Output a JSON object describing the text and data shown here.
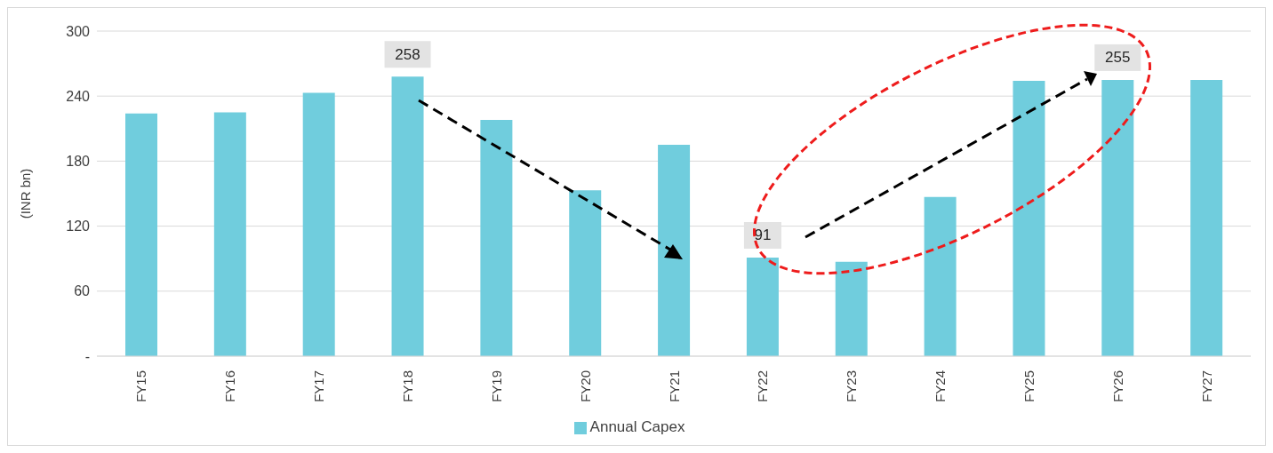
{
  "chart_data": {
    "type": "bar",
    "ylabel": "(INR bn)",
    "categories": [
      "FY15",
      "FY16",
      "FY17",
      "FY18",
      "FY19",
      "FY20",
      "FY21",
      "FY22",
      "FY23",
      "FY24",
      "FY25",
      "FY26",
      "FY27"
    ],
    "series": [
      {
        "name": "Annual Capex",
        "color": "#70cddd",
        "values": [
          224,
          225,
          243,
          258,
          218,
          153,
          195,
          91,
          87,
          147,
          254,
          255,
          255
        ],
        "value_labels": [
          null,
          null,
          null,
          "258",
          null,
          null,
          null,
          "91",
          null,
          null,
          null,
          "255",
          null
        ]
      }
    ],
    "ylim": [
      0,
      300
    ],
    "yticks": [
      {
        "value": 0,
        "label": "-"
      },
      60,
      120,
      180,
      240,
      300
    ],
    "grid": "y",
    "legend": "bottom"
  }
}
